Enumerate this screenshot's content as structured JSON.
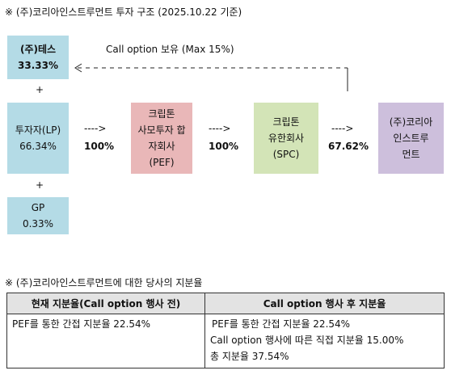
{
  "title": "※ (주)코리아인스트루먼트 투자 구조 (2025.10.22 기준)",
  "nodes": {
    "tes": {
      "line1": "(주)테스",
      "line2": "33.33%"
    },
    "lp": {
      "line1": "투자자(LP)",
      "line2": "66.34%"
    },
    "gp": {
      "line1": "GP",
      "line2": "0.33%"
    },
    "pef": {
      "line1": "크립톤",
      "line2": "사모투자 합",
      "line3": "자회사",
      "line4": "(PEF)"
    },
    "spc": {
      "line1": "크립톤",
      "line2": "유한회사",
      "line3": "(SPC)"
    },
    "target": {
      "line1": "(주)코리아",
      "line2": "인스트루",
      "line3": "먼트"
    }
  },
  "plus_sign": "+",
  "call_option_label": "Call option 보유 (Max 15%)",
  "edges": {
    "lp_to_pef": "100%",
    "pef_to_spc": "100%",
    "spc_to_target": "67.62%",
    "arrow_text": "---->"
  },
  "colors": {
    "blue": "#b4dbe6",
    "pink": "#e9b7b8",
    "green": "#d3e4b7",
    "purple": "#cdbfdc"
  },
  "table_title": "※ (주)코리아인스트루먼트에 대한 당사의 지분율",
  "table": {
    "headers": [
      "현재 지분율(Call option 행사 전)",
      "Call option 행사 후 지분율"
    ],
    "before": [
      "PEF를 통한 간접 지분율 22.54%"
    ],
    "after": [
      "PEF를 통한 간접 지분율 22.54%",
      "Call option 행사에 따른 직접 지분율 15.00%",
      "총 지분율 37.54%"
    ]
  }
}
